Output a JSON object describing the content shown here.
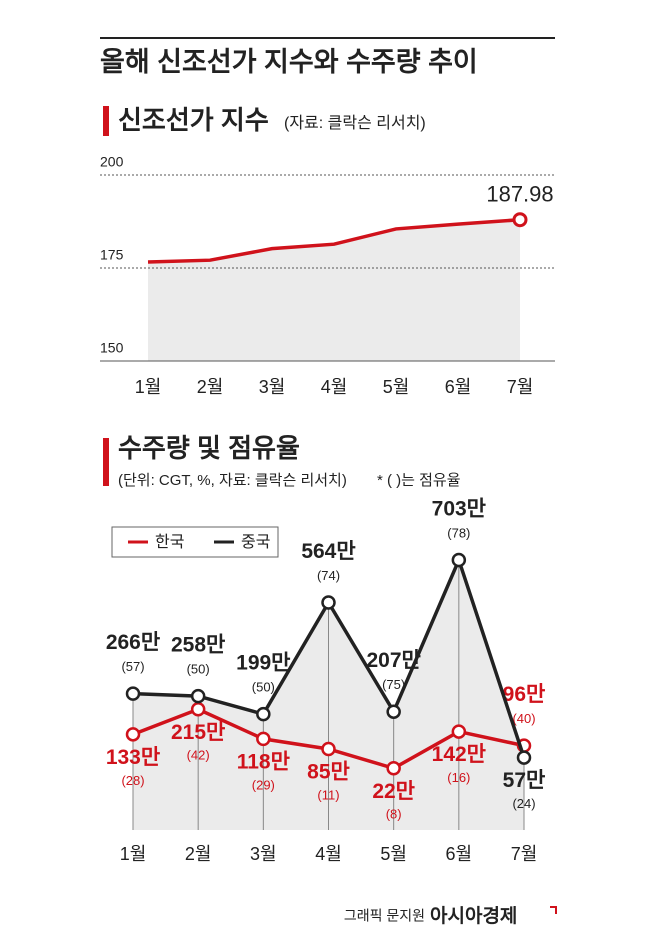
{
  "title": "올해 신조선가 지수와 수주량 추이",
  "chart_data": [
    {
      "type": "line",
      "title": "신조선가 지수",
      "source": "(자료: 클락슨 리서치)",
      "categories": [
        "1월",
        "2월",
        "3월",
        "4월",
        "5월",
        "6월",
        "7월"
      ],
      "values": [
        176.6,
        177.1,
        180.2,
        181.4,
        185.5,
        186.8,
        187.98
      ],
      "color": "#d0121b",
      "ylim": [
        150,
        200
      ],
      "yticks": [
        150,
        175,
        200
      ],
      "grid": true
    },
    {
      "type": "line",
      "title": "수주량 및 점유율",
      "subtitle": "(단위: CGT, %, 자료: 클락슨 리서치)",
      "note": "* ( )는 점유율",
      "categories": [
        "1월",
        "2월",
        "3월",
        "4월",
        "5월",
        "6월",
        "7월"
      ],
      "series": [
        {
          "name": "한국",
          "color": "#d0121b",
          "values": [
            1330000,
            2150000,
            1180000,
            850000,
            220000,
            1420000,
            960000
          ],
          "value_labels": [
            "133만",
            "215만",
            "118만",
            "85만",
            "22만",
            "142만",
            "96만"
          ],
          "shares": [
            28,
            42,
            29,
            11,
            8,
            16,
            40
          ],
          "share_labels": [
            "(28)",
            "(42)",
            "(29)",
            "(11)",
            "(8)",
            "(16)",
            "(40)"
          ]
        },
        {
          "name": "중국",
          "color": "#222222",
          "values": [
            2660000,
            2580000,
            1990000,
            5640000,
            2070000,
            7030000,
            570000
          ],
          "value_labels": [
            "266만",
            "258만",
            "199만",
            "564만",
            "207만",
            "703만",
            "57만"
          ],
          "shares": [
            57,
            50,
            50,
            74,
            75,
            78,
            24
          ],
          "share_labels": [
            "(57)",
            "(50)",
            "(50)",
            "(74)",
            "(75)",
            "(78)",
            "(24)"
          ]
        }
      ]
    }
  ],
  "footer": {
    "credit": "그래픽 문지원",
    "brand": "아시아경제"
  }
}
